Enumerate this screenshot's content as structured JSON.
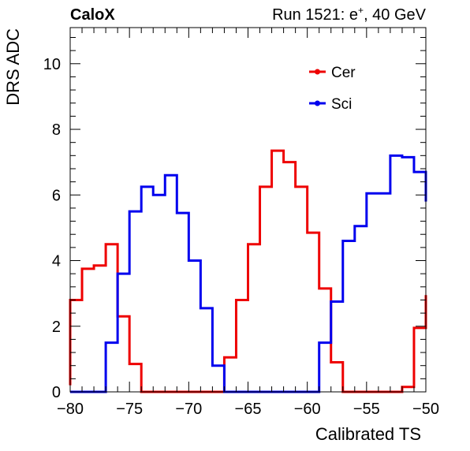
{
  "header": {
    "left_label": "CaloX",
    "right_label_prefix": "Run 1521: e",
    "right_label_sup": "+",
    "right_label_suffix": ", 40 GeV"
  },
  "chart_data": {
    "type": "line",
    "style": "step-histogram",
    "xlabel": "Calibrated TS",
    "ylabel": "DRS ADC",
    "xlim": [
      -80,
      -50
    ],
    "ylim": [
      0,
      11.1
    ],
    "x_ticks": [
      -80,
      -75,
      -70,
      -65,
      -60,
      -55,
      -50
    ],
    "y_ticks": [
      0,
      2,
      4,
      6,
      8,
      10
    ],
    "grid": false,
    "legend_position": "top-right",
    "bin_edges": [
      -80,
      -79,
      -78,
      -77,
      -76,
      -75,
      -74,
      -73,
      -72,
      -71,
      -70,
      -69,
      -68,
      -67,
      -66,
      -65,
      -64,
      -63,
      -62,
      -61,
      -60,
      -59,
      -58,
      -57,
      -56,
      -55,
      -54,
      -53,
      -52,
      -51,
      -50
    ],
    "series": [
      {
        "name": "Cer",
        "color": "#ee0000",
        "values": [
          2.8,
          3.75,
          3.85,
          4.5,
          2.3,
          0.85,
          0,
          0,
          0,
          0,
          0,
          0,
          0,
          1.05,
          2.8,
          4.5,
          6.25,
          7.35,
          7.0,
          6.25,
          4.85,
          3.15,
          0.9,
          0,
          0,
          0,
          0,
          0,
          0.15,
          1.95
        ],
        "end_value": 2.95,
        "start_value": 0.2
      },
      {
        "name": "Sci",
        "color": "#0000ee",
        "values": [
          0,
          0,
          0,
          1.5,
          3.6,
          5.5,
          6.25,
          6.0,
          6.6,
          5.45,
          4.0,
          2.55,
          0.8,
          0,
          0,
          0,
          0,
          0,
          0,
          0,
          0,
          1.5,
          2.75,
          4.6,
          5.05,
          6.05,
          6.05,
          7.2,
          7.15,
          6.7
        ],
        "end_value": 5.8,
        "start_value": 0
      }
    ]
  }
}
